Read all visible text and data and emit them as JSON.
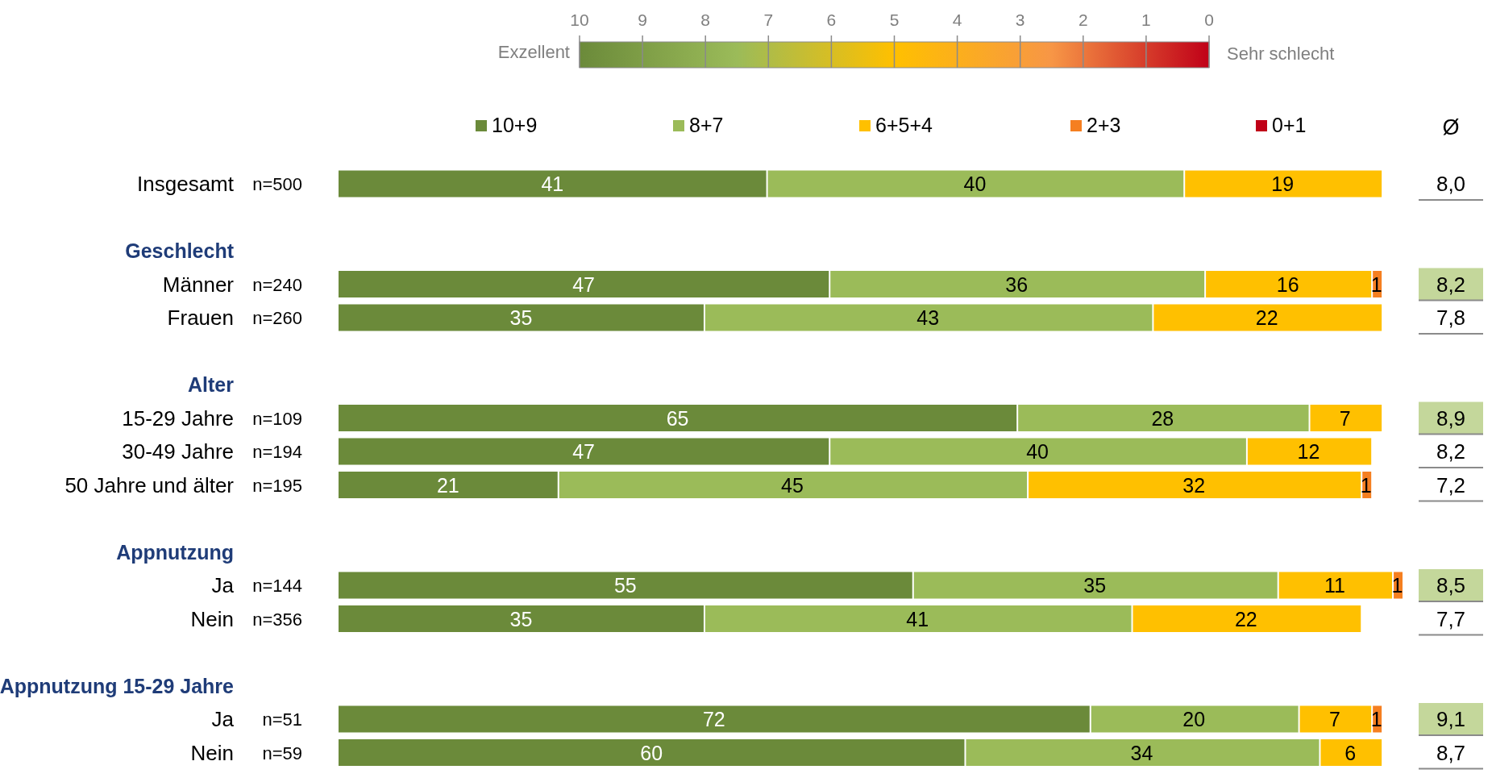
{
  "chart_data": [
    {
      "type": "bar",
      "orientation": "horizontal",
      "stacked": true,
      "data_labels": true,
      "legend": "top",
      "categories": [
        "Insgesamt",
        "Geschlecht",
        "Männer",
        "Frauen",
        "Alter",
        "15-29 Jahre",
        "30-49 Jahre",
        "50 Jahre und älter",
        "Appnutzung",
        "Ja",
        "Nein",
        "Appnutzung 15-29 Jahre",
        "Ja",
        "Nein"
      ],
      "series": [
        {
          "name": "10+9",
          "color": "#6b8a3a",
          "values": [
            41,
            null,
            47,
            35,
            null,
            65,
            47,
            21,
            null,
            55,
            35,
            null,
            72,
            60
          ]
        },
        {
          "name": "8+7",
          "color": "#9bbb59",
          "values": [
            40,
            null,
            36,
            43,
            null,
            28,
            40,
            45,
            null,
            35,
            41,
            null,
            20,
            34
          ]
        },
        {
          "name": "6+5+4",
          "color": "#ffc000",
          "values": [
            19,
            null,
            16,
            22,
            null,
            7,
            12,
            32,
            null,
            11,
            22,
            null,
            7,
            6
          ]
        },
        {
          "name": "2+3",
          "color": "#f57f20",
          "values": [
            null,
            null,
            1,
            null,
            null,
            null,
            null,
            1,
            null,
            1,
            null,
            null,
            1,
            null
          ]
        },
        {
          "name": "0+1",
          "color": "#c00018",
          "values": [
            null,
            null,
            null,
            null,
            null,
            null,
            null,
            null,
            null,
            null,
            null,
            null,
            null,
            null
          ]
        }
      ],
      "clim": [
        10,
        0
      ],
      "cticks": [
        10,
        9,
        8,
        7,
        6,
        5,
        4,
        3,
        2,
        1,
        0
      ],
      "annotations": [
        "Exzellent",
        "Sehr schlecht",
        "n=500",
        "n=240",
        "n=260",
        "n=109",
        "n=194",
        "n=195",
        "n=144",
        "n=356",
        "n=51",
        "n=59"
      ]
    },
    {
      "type": "other",
      "title": "Ø",
      "value_labels": [
        "8,0",
        null,
        "8,2",
        "7,8",
        null,
        "8,9",
        "8,2",
        "7,2",
        null,
        "8,5",
        "7,7",
        null,
        "9,1",
        "8,7"
      ],
      "colors": [
        "#ffffff",
        null,
        "#c4d79b",
        "#ffffff",
        null,
        "#c4d79b",
        "#ffffff",
        "#ffffff",
        null,
        "#c4d79b",
        "#ffffff",
        null,
        "#c4d79b",
        "#ffffff"
      ]
    }
  ]
}
